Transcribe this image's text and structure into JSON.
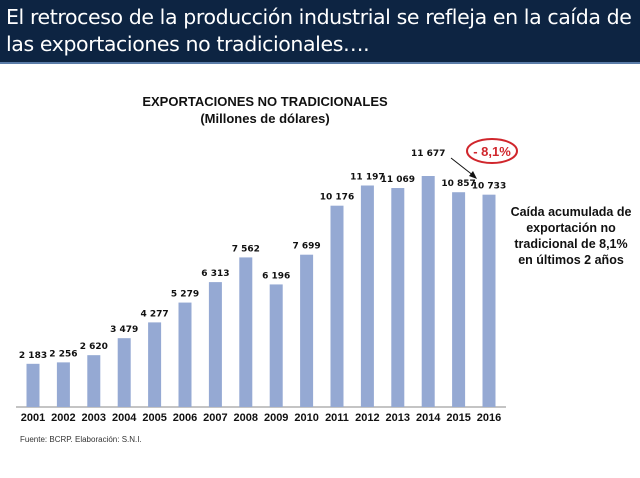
{
  "header": {
    "title": "El retroceso de la producción industrial se refleja en la caída de las exportaciones no tradicionales…."
  },
  "chart_data": {
    "type": "bar",
    "title": "EXPORTACIONES NO TRADICIONALES",
    "subtitle": "(Millones de dólares)",
    "categories": [
      "2001",
      "2002",
      "2003",
      "2004",
      "2005",
      "2006",
      "2007",
      "2008",
      "2009",
      "2010",
      "2011",
      "2012",
      "2013",
      "2014",
      "2015",
      "2016"
    ],
    "values": [
      2183,
      2256,
      2620,
      3479,
      4277,
      5279,
      6313,
      7562,
      6196,
      7699,
      10176,
      11197,
      11069,
      11677,
      10857,
      10733
    ],
    "data_labels": [
      "2 183",
      "2 256",
      "2 620",
      "3 479",
      "4 277",
      "5 279",
      "6 313",
      "7 562",
      "6 196",
      "7 699",
      "10 176",
      "11 197",
      "11 069",
      "11 677",
      "10 857",
      "10 733"
    ],
    "bar_color": "#95a9d3",
    "ylim": [
      0,
      11677
    ],
    "grid": false,
    "annotation": "- 8,1%",
    "annotation_color": "#d0262c",
    "note": "Caída acumulada de exportación no tradicional de 8,1% en últimos 2 años",
    "source": "Fuente: BCRP. Elaboración: S.N.I."
  }
}
